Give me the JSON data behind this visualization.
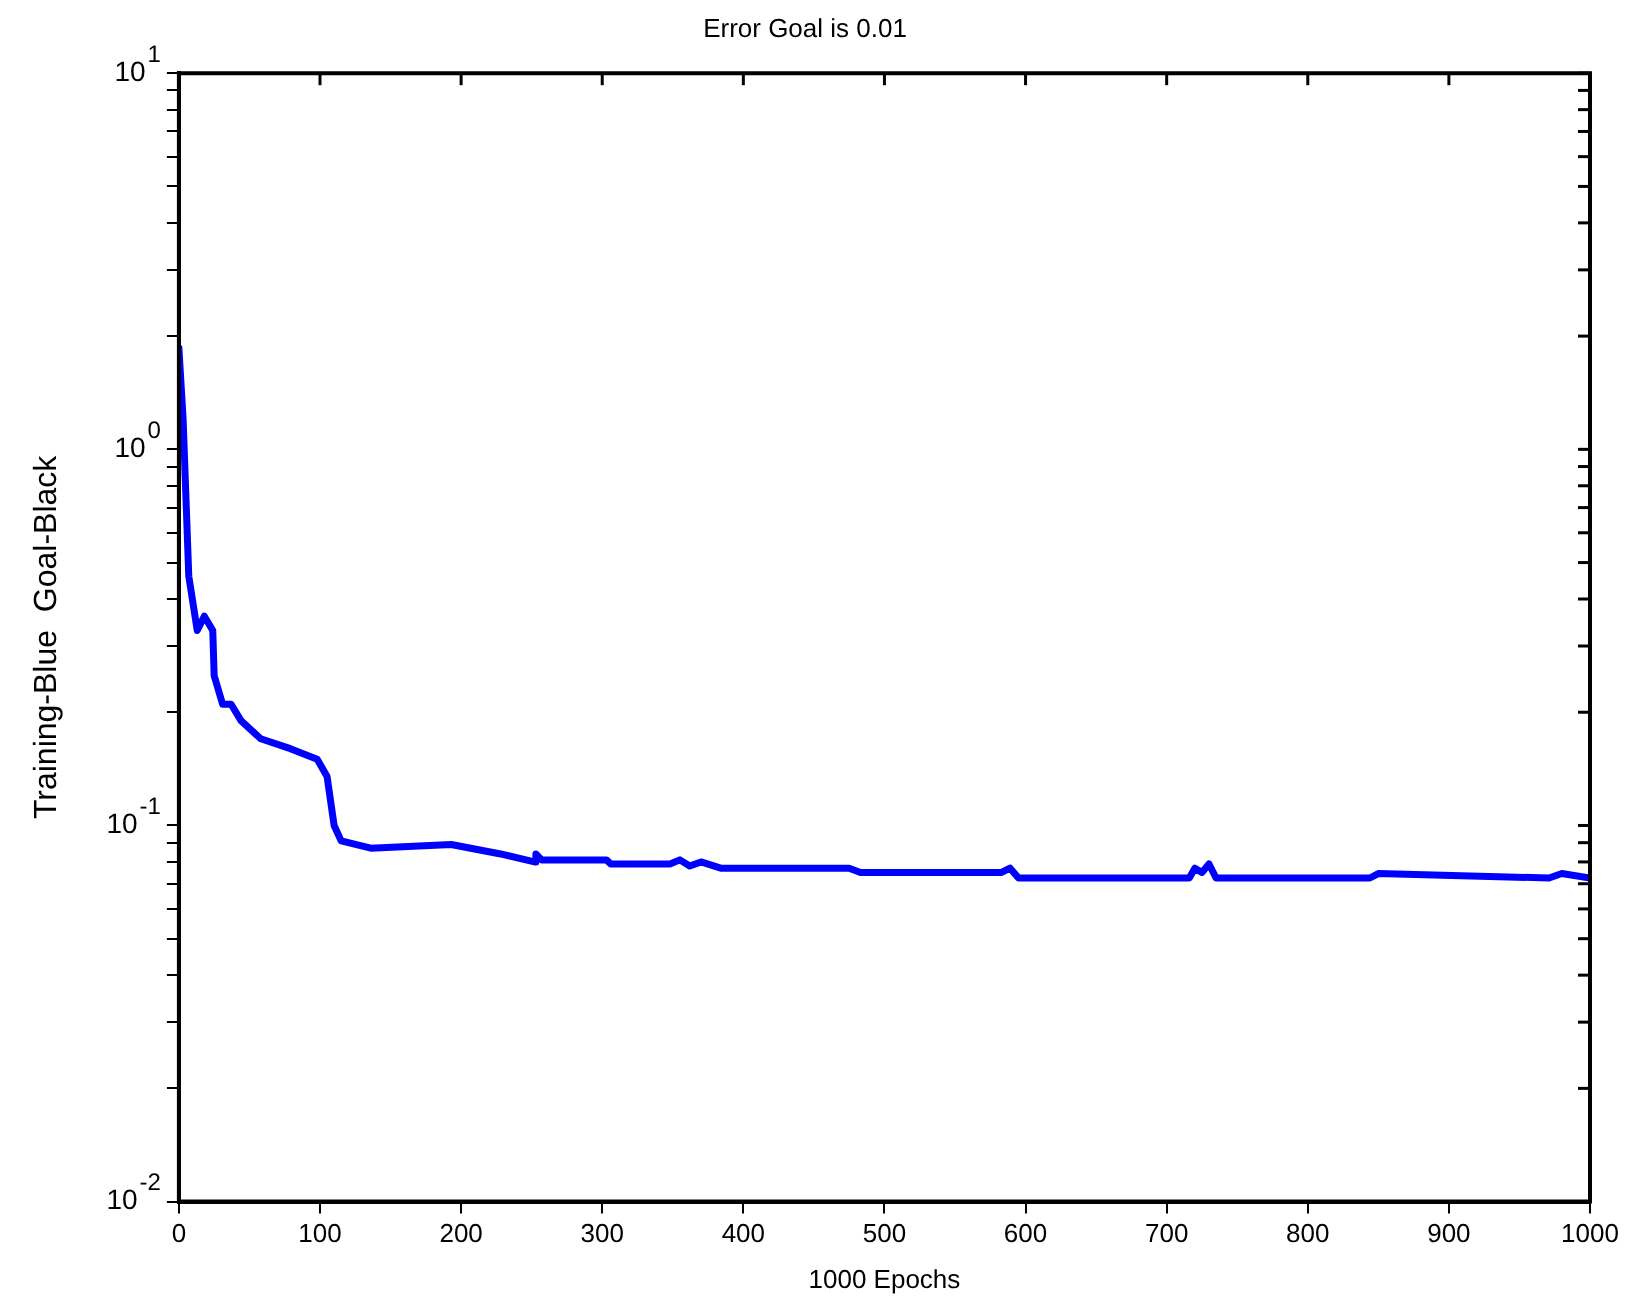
{
  "chart_data": {
    "type": "line",
    "title": "Error Goal is 0.01",
    "xlabel": "1000 Epochs",
    "ylabel": "Training-Blue  Goal-Black",
    "log": "y",
    "grid": false,
    "legend": false,
    "marker": "none",
    "line_style": "solid",
    "xlim": [
      0,
      1000
    ],
    "xticks": [
      0,
      100,
      200,
      300,
      400,
      500,
      600,
      700,
      800,
      900,
      1000
    ],
    "ylim": [
      0.01,
      10
    ],
    "yticks": [
      {
        "value": 0.01,
        "label": "10$^{-2}$"
      },
      {
        "value": 0.02,
        "label": null
      },
      {
        "value": 0.03,
        "label": null
      },
      {
        "value": 0.04,
        "label": null
      },
      {
        "value": 0.05,
        "label": null
      },
      {
        "value": 0.06,
        "label": null
      },
      {
        "value": 0.07,
        "label": null
      },
      {
        "value": 0.08,
        "label": null
      },
      {
        "value": 0.09,
        "label": null
      },
      {
        "value": 0.1,
        "label": "10$^{-1}$"
      },
      {
        "value": 0.2,
        "label": null
      },
      {
        "value": 0.3,
        "label": null
      },
      {
        "value": 0.4,
        "label": null
      },
      {
        "value": 0.5,
        "label": null
      },
      {
        "value": 0.6,
        "label": null
      },
      {
        "value": 0.7,
        "label": null
      },
      {
        "value": 0.8,
        "label": null
      },
      {
        "value": 0.9,
        "label": null
      },
      {
        "value": 1,
        "label": "10$^{0}$"
      },
      {
        "value": 2,
        "label": null
      },
      {
        "value": 3,
        "label": null
      },
      {
        "value": 4,
        "label": null
      },
      {
        "value": 5,
        "label": null
      },
      {
        "value": 6,
        "label": null
      },
      {
        "value": 7,
        "label": null
      },
      {
        "value": 8,
        "label": null
      },
      {
        "value": 9,
        "label": null
      },
      {
        "value": 10,
        "label": "10$^{1}$"
      }
    ],
    "series": [
      {
        "color": "#0000ff",
        "x": [
          0,
          3,
          7,
          13,
          18,
          24,
          25,
          31,
          37,
          44,
          58,
          79,
          98,
          105,
          110,
          115,
          136,
          193,
          228,
          252,
          253,
          257,
          259,
          303,
          306,
          348,
          355,
          362,
          370,
          384,
          475,
          483,
          490,
          583,
          589,
          595,
          716,
          720,
          725,
          730,
          735,
          740,
          844,
          850,
          971,
          980,
          1000
        ],
        "values": [
          1.86,
          1.2,
          0.46,
          0.33,
          0.36,
          0.33,
          0.25,
          0.21,
          0.21,
          0.19,
          0.17,
          0.16,
          0.15,
          0.135,
          0.1,
          0.091,
          0.087,
          0.089,
          0.084,
          0.08,
          0.084,
          0.081,
          0.081,
          0.081,
          0.079,
          0.079,
          0.081,
          0.078,
          0.08,
          0.077,
          0.077,
          0.075,
          0.075,
          0.075,
          0.077,
          0.0725,
          0.0725,
          0.077,
          0.075,
          0.079,
          0.0725,
          0.0725,
          0.0725,
          0.0745,
          0.0725,
          0.0745,
          0.0725
        ]
      }
    ]
  }
}
